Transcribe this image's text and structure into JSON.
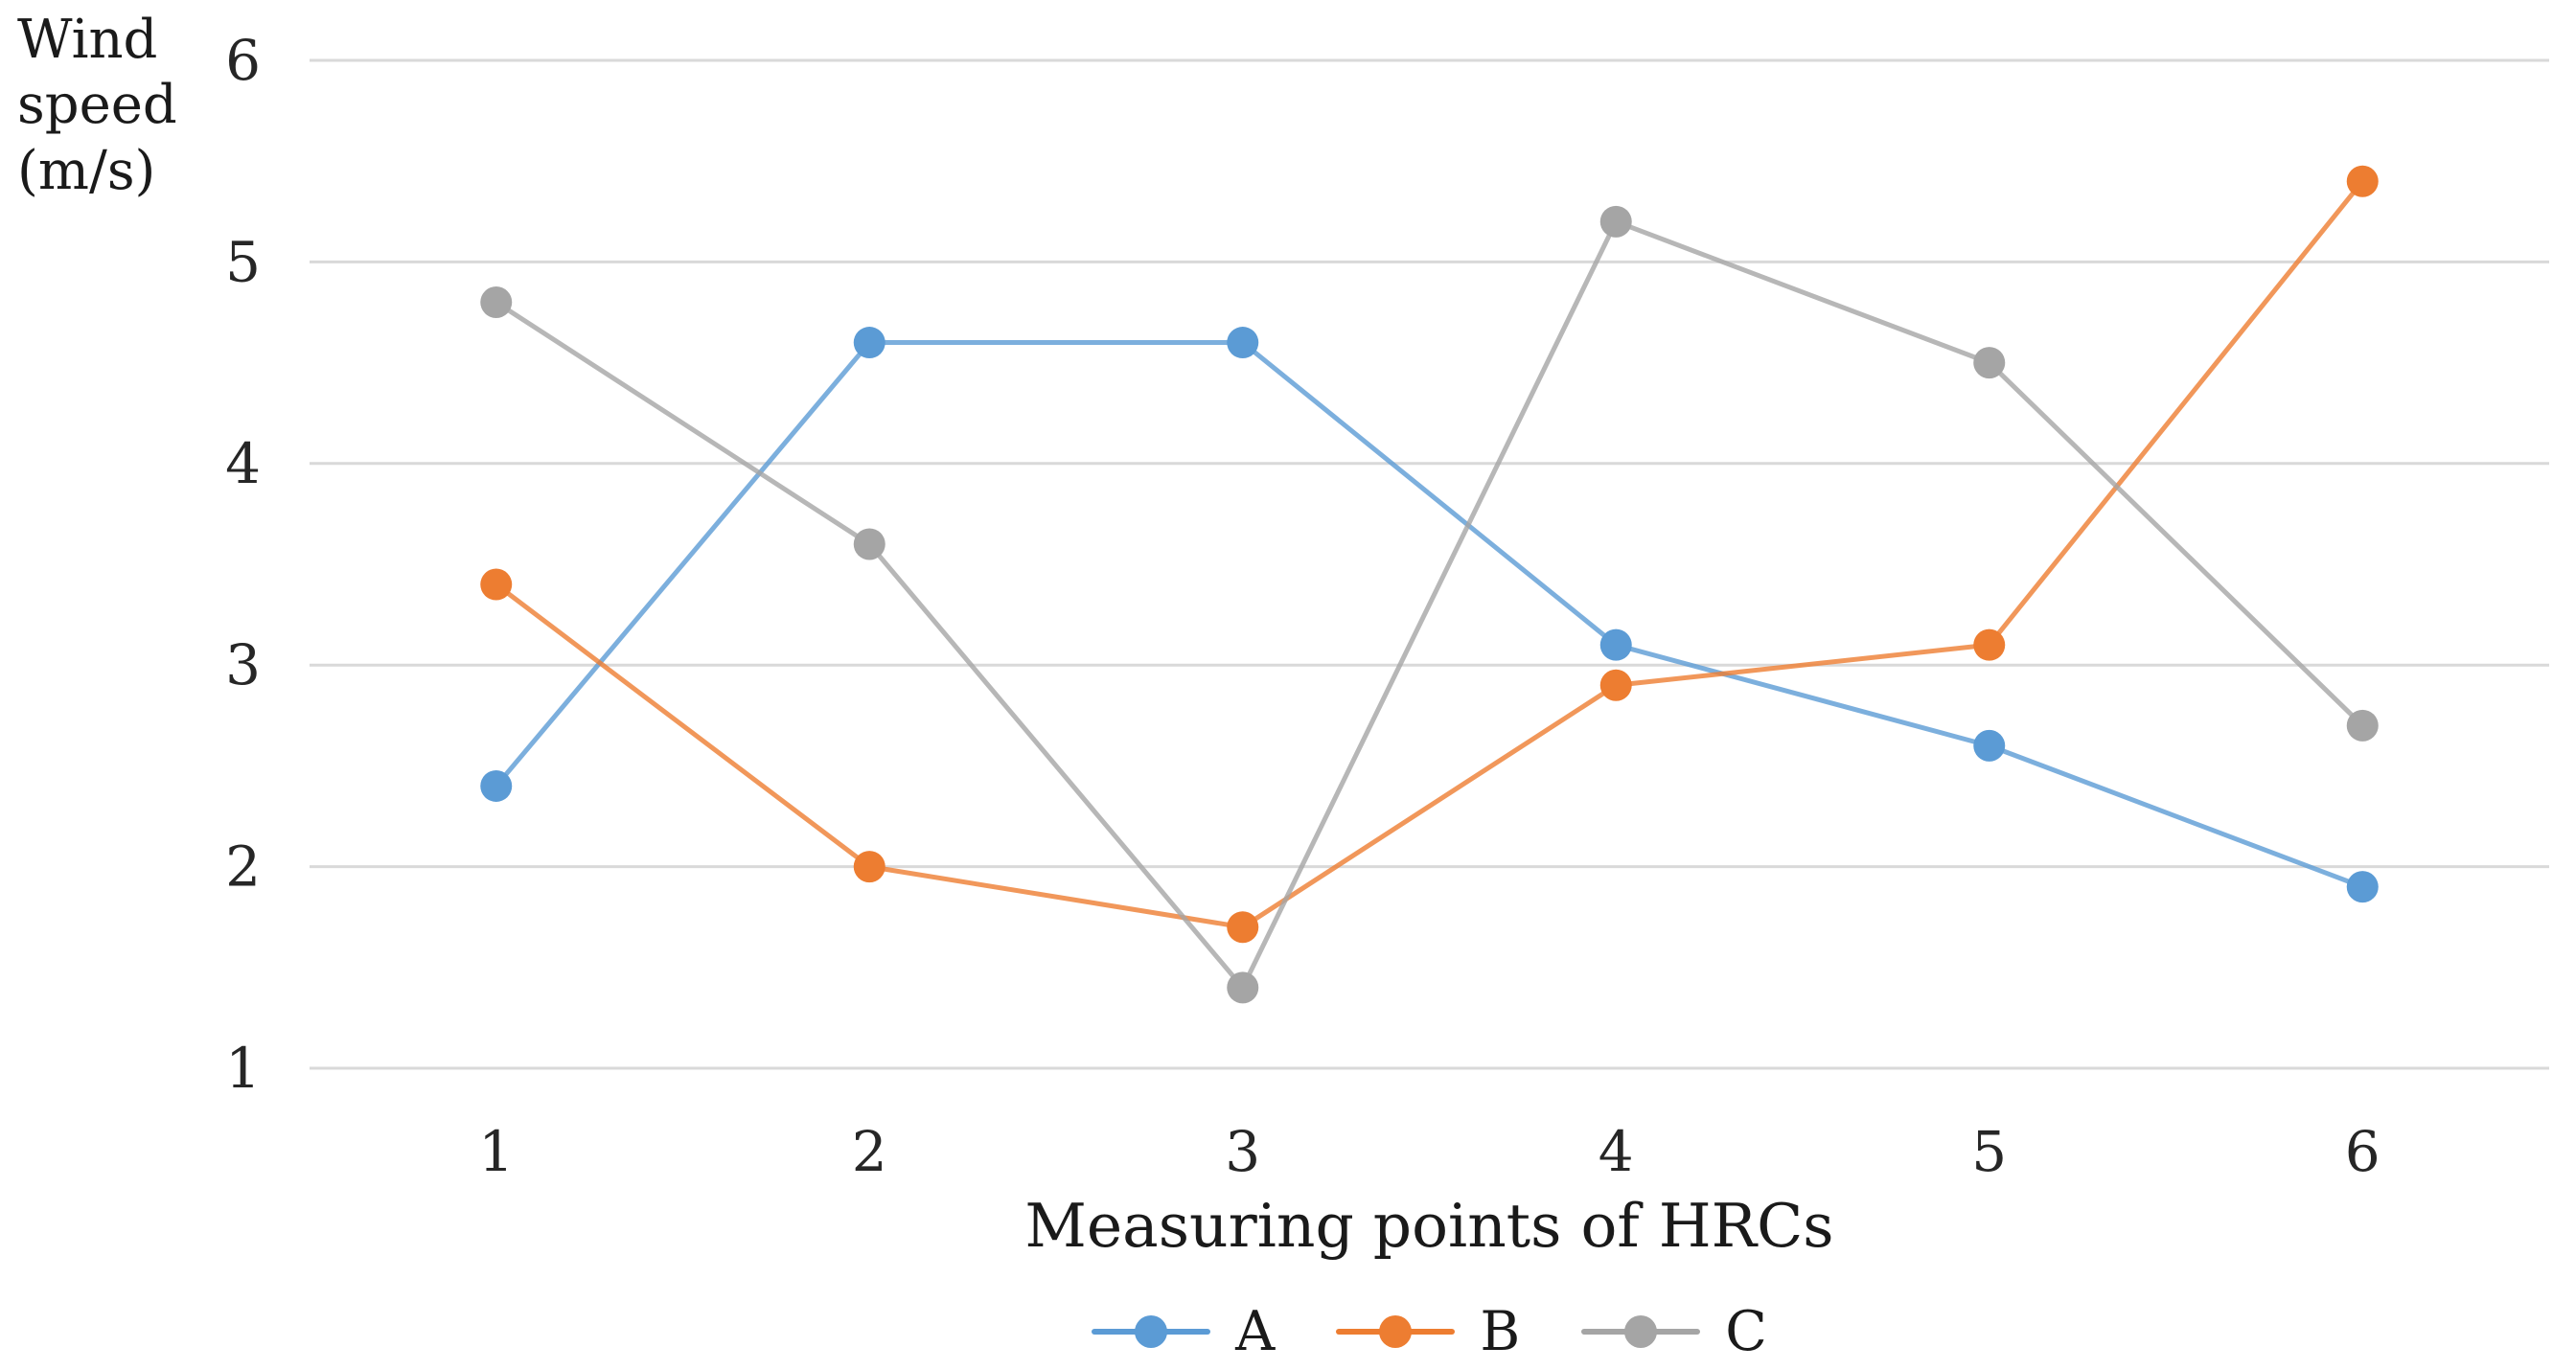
{
  "y_axis": {
    "title": "Wind\nspeed\n(m/s)"
  },
  "chart_data": {
    "type": "line",
    "categories": [
      "1",
      "2",
      "3",
      "4",
      "5",
      "6"
    ],
    "series": [
      {
        "name": "A",
        "color": "#5B9BD5",
        "values": [
          2.4,
          4.6,
          4.6,
          3.1,
          2.6,
          1.9
        ]
      },
      {
        "name": "B",
        "color": "#ED7D31",
        "values": [
          3.4,
          2.0,
          1.7,
          2.9,
          3.1,
          5.4
        ]
      },
      {
        "name": "C",
        "color": "#A5A5A5",
        "values": [
          4.8,
          3.6,
          1.4,
          5.2,
          4.5,
          2.7
        ]
      }
    ],
    "title": "",
    "xlabel": "Measuring points of HRCs",
    "ylabel": "Wind speed (m/s)",
    "y_ticks": [
      6,
      5,
      4,
      3,
      2,
      1
    ],
    "ylim": [
      1,
      6
    ],
    "grid": true,
    "legend_position": "bottom"
  },
  "colors": {
    "gridline": "#D9D9D9",
    "text": "#262626",
    "background": "#FFFFFF"
  }
}
